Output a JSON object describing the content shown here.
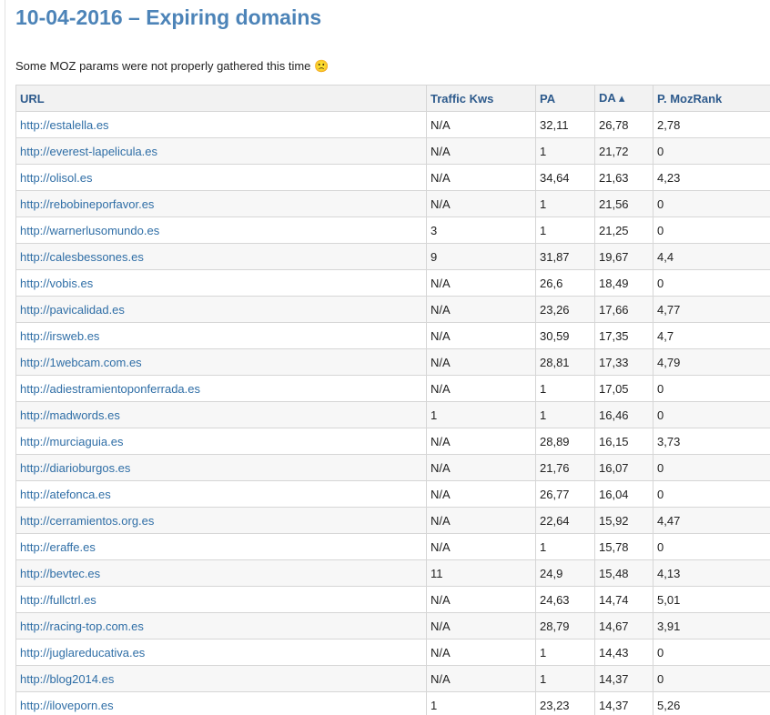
{
  "header": {
    "title": "10-04-2016 – Expiring domains"
  },
  "notice": "Some MOZ params were not properly gathered this time 🙁",
  "table": {
    "columns": [
      "URL",
      "Traffic Kws",
      "PA",
      "DA ▴",
      "P. MozRank"
    ],
    "rows": [
      [
        "http://estalella.es",
        "N/A",
        "32,11",
        "26,78",
        "2,78"
      ],
      [
        "http://everest-lapelicula.es",
        "N/A",
        "1",
        "21,72",
        "0"
      ],
      [
        "http://olisol.es",
        "N/A",
        "34,64",
        "21,63",
        "4,23"
      ],
      [
        "http://rebobineporfavor.es",
        "N/A",
        "1",
        "21,56",
        "0"
      ],
      [
        "http://warnerlusomundo.es",
        "3",
        "1",
        "21,25",
        "0"
      ],
      [
        "http://calesbessones.es",
        "9",
        "31,87",
        "19,67",
        "4,4"
      ],
      [
        "http://vobis.es",
        "N/A",
        "26,6",
        "18,49",
        "0"
      ],
      [
        "http://pavicalidad.es",
        "N/A",
        "23,26",
        "17,66",
        "4,77"
      ],
      [
        "http://irsweb.es",
        "N/A",
        "30,59",
        "17,35",
        "4,7"
      ],
      [
        "http://1webcam.com.es",
        "N/A",
        "28,81",
        "17,33",
        "4,79"
      ],
      [
        "http://adiestramientoponferrada.es",
        "N/A",
        "1",
        "17,05",
        "0"
      ],
      [
        "http://madwords.es",
        "1",
        "1",
        "16,46",
        "0"
      ],
      [
        "http://murciaguia.es",
        "N/A",
        "28,89",
        "16,15",
        "3,73"
      ],
      [
        "http://diarioburgos.es",
        "N/A",
        "21,76",
        "16,07",
        "0"
      ],
      [
        "http://atefonca.es",
        "N/A",
        "26,77",
        "16,04",
        "0"
      ],
      [
        "http://cerramientos.org.es",
        "N/A",
        "22,64",
        "15,92",
        "4,47"
      ],
      [
        "http://eraffe.es",
        "N/A",
        "1",
        "15,78",
        "0"
      ],
      [
        "http://bevtec.es",
        "11",
        "24,9",
        "15,48",
        "4,13"
      ],
      [
        "http://fullctrl.es",
        "N/A",
        "24,63",
        "14,74",
        "5,01"
      ],
      [
        "http://racing-top.com.es",
        "N/A",
        "28,79",
        "14,67",
        "3,91"
      ],
      [
        "http://juglareducativa.es",
        "N/A",
        "1",
        "14,43",
        "0"
      ],
      [
        "http://blog2014.es",
        "N/A",
        "1",
        "14,37",
        "0"
      ],
      [
        "http://iloveporn.es",
        "1",
        "23,23",
        "14,37",
        "5,26"
      ]
    ]
  }
}
